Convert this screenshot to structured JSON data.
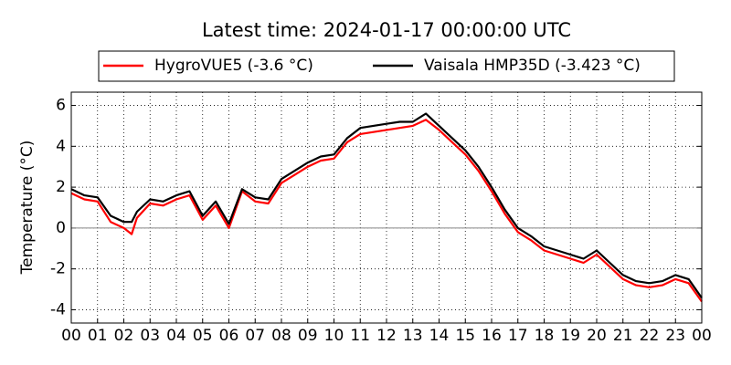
{
  "chart_data": {
    "type": "line",
    "title": "Latest time: 2024-01-17 00:00:00 UTC",
    "y_label": "Temperature (°C)",
    "x": [
      0,
      0.5,
      1,
      1.5,
      2,
      2.3,
      2.5,
      3,
      3.5,
      4,
      4.5,
      5,
      5.5,
      6,
      6.5,
      7,
      7.5,
      8,
      8.5,
      9,
      9.5,
      10,
      10.5,
      11,
      11.5,
      12,
      12.5,
      13,
      13.5,
      14,
      14.5,
      15,
      15.5,
      16,
      16.5,
      17,
      17.5,
      18,
      18.5,
      19,
      19.5,
      20,
      20.5,
      21,
      21.5,
      22,
      22.5,
      23,
      23.5,
      24
    ],
    "series": [
      {
        "name": "HygroVUE5 (-3.6 °C)",
        "color": "#ff0000",
        "values": [
          1.7,
          1.4,
          1.3,
          0.3,
          0.0,
          -0.3,
          0.5,
          1.2,
          1.1,
          1.4,
          1.6,
          0.4,
          1.1,
          0.0,
          1.8,
          1.3,
          1.2,
          2.2,
          2.6,
          3.0,
          3.3,
          3.4,
          4.2,
          4.6,
          4.7,
          4.8,
          4.9,
          5.0,
          5.3,
          4.8,
          4.2,
          3.6,
          2.8,
          1.8,
          0.7,
          -0.2,
          -0.6,
          -1.1,
          -1.3,
          -1.5,
          -1.7,
          -1.3,
          -1.9,
          -2.5,
          -2.8,
          -2.9,
          -2.8,
          -2.5,
          -2.7,
          -3.6
        ]
      },
      {
        "name": "Vaisala HMP35D (-3.423 °C)",
        "color": "#000000",
        "values": [
          1.9,
          1.6,
          1.5,
          0.6,
          0.3,
          0.3,
          0.8,
          1.4,
          1.3,
          1.6,
          1.8,
          0.6,
          1.3,
          0.2,
          1.9,
          1.5,
          1.4,
          2.4,
          2.8,
          3.2,
          3.5,
          3.6,
          4.4,
          4.9,
          5.0,
          5.1,
          5.2,
          5.2,
          5.6,
          5.0,
          4.4,
          3.8,
          3.0,
          2.0,
          0.9,
          0.0,
          -0.4,
          -0.9,
          -1.1,
          -1.3,
          -1.5,
          -1.1,
          -1.7,
          -2.3,
          -2.6,
          -2.7,
          -2.6,
          -2.3,
          -2.5,
          -3.423
        ]
      }
    ],
    "xlim": [
      0,
      24
    ],
    "xticks": [
      {
        "value": 0,
        "label": "00"
      },
      {
        "value": 1,
        "label": "01"
      },
      {
        "value": 2,
        "label": "02"
      },
      {
        "value": 3,
        "label": "03"
      },
      {
        "value": 4,
        "label": "04"
      },
      {
        "value": 5,
        "label": "05"
      },
      {
        "value": 6,
        "label": "06"
      },
      {
        "value": 7,
        "label": "07"
      },
      {
        "value": 8,
        "label": "08"
      },
      {
        "value": 9,
        "label": "09"
      },
      {
        "value": 10,
        "label": "10"
      },
      {
        "value": 11,
        "label": "11"
      },
      {
        "value": 12,
        "label": "12"
      },
      {
        "value": 13,
        "label": "13"
      },
      {
        "value": 14,
        "label": "14"
      },
      {
        "value": 15,
        "label": "15"
      },
      {
        "value": 16,
        "label": "16"
      },
      {
        "value": 17,
        "label": "17"
      },
      {
        "value": 18,
        "label": "18"
      },
      {
        "value": 19,
        "label": "19"
      },
      {
        "value": 20,
        "label": "20"
      },
      {
        "value": 21,
        "label": "21"
      },
      {
        "value": 22,
        "label": "22"
      },
      {
        "value": 23,
        "label": "23"
      },
      {
        "value": 24,
        "label": "00"
      }
    ],
    "ylim": [
      -4.65,
      6.65
    ],
    "yticks": [
      -4,
      -2,
      0,
      2,
      4,
      6
    ],
    "grid": true,
    "legend": "top"
  }
}
